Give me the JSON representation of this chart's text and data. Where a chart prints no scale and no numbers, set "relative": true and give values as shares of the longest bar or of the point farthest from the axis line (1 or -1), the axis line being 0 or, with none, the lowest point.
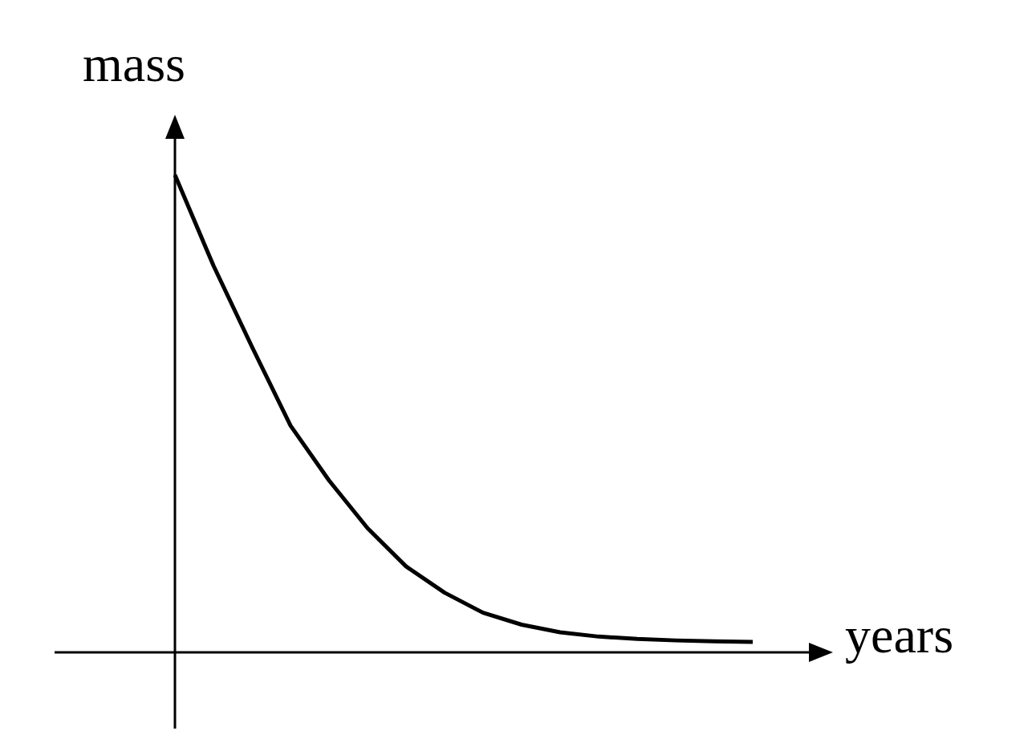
{
  "chart_data": {
    "type": "line",
    "relative": true,
    "xlabel": "years",
    "ylabel": "mass",
    "categories": [
      null,
      null,
      null,
      null,
      null,
      null,
      null,
      null,
      null,
      null,
      null,
      null,
      null,
      null,
      null,
      null
    ],
    "series": [
      {
        "color": "#000000",
        "values": [
          1.0,
          0.81,
          0.64,
          0.475,
          0.36,
          0.26,
          0.18,
          0.125,
          0.083,
          0.058,
          0.042,
          0.033,
          0.028,
          0.025,
          0.023,
          0.022
        ]
      }
    ],
    "marker": "none",
    "line_style": "solid"
  }
}
